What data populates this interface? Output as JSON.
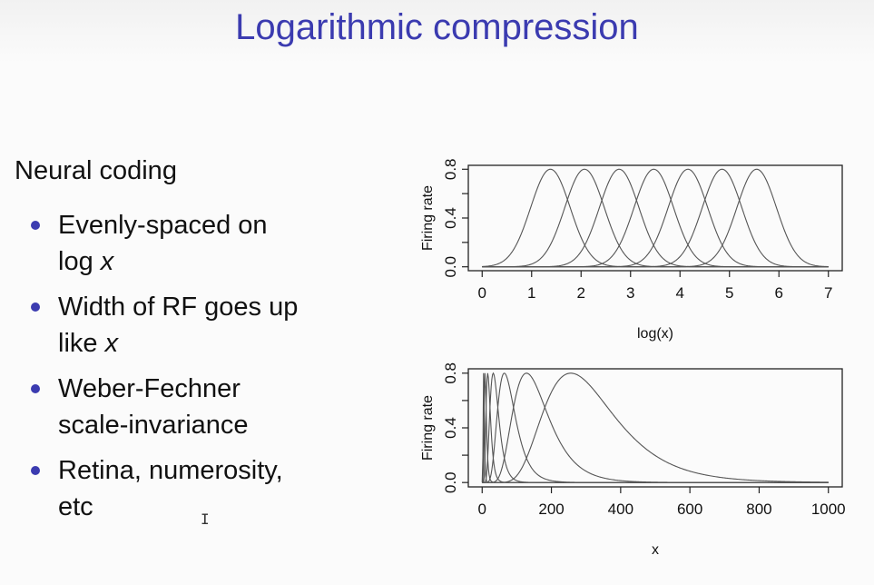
{
  "slide": {
    "title": "Logarithmic compression",
    "heading": "Neural coding",
    "bullets": [
      {
        "lines": [
          [
            "Evenly-spaced on"
          ],
          [
            "log ",
            {
              "em": "x"
            }
          ]
        ]
      },
      {
        "lines": [
          [
            "Width of RF goes up"
          ],
          [
            "like ",
            {
              "em": "x"
            }
          ]
        ]
      },
      {
        "lines": [
          [
            "Weber-Fechner"
          ],
          [
            "scale-invariance"
          ]
        ]
      },
      {
        "lines": [
          [
            "Retina, numerosity,"
          ],
          [
            "etc"
          ]
        ]
      }
    ],
    "cursor_glyph": "I"
  },
  "chart_data": [
    {
      "type": "line",
      "xlabel": "log(x)",
      "ylabel": "Firing rate",
      "xlim": [
        0,
        7
      ],
      "ylim": [
        0,
        0.8
      ],
      "xticks": [
        0,
        1,
        2,
        3,
        4,
        5,
        6,
        7
      ],
      "yticks": [
        0.0,
        0.4,
        0.8
      ],
      "ytick_labels": [
        "0.0",
        "0.4",
        "0.8"
      ],
      "curve_form": "gaussian in log(x)",
      "peak_value": 0.8,
      "series_centers": [
        1.38,
        2.07,
        2.77,
        3.47,
        4.16,
        4.85,
        5.55
      ],
      "series_sigma": 0.4,
      "line_color": "#555555"
    },
    {
      "type": "line",
      "xlabel": "x",
      "ylabel": "Firing rate",
      "xlim": [
        0,
        1000
      ],
      "ylim": [
        0,
        0.8
      ],
      "xticks": [
        0,
        200,
        400,
        600,
        800,
        1000
      ],
      "yticks": [
        0.0,
        0.4,
        0.8
      ],
      "ytick_labels": [
        "0.0",
        "0.4",
        "0.8"
      ],
      "curve_form": "log-normal in x",
      "peak_value": 0.8,
      "series_peak_x": [
        4,
        8,
        16,
        32,
        64,
        128,
        256
      ],
      "series_sigma_log": 0.4,
      "line_color": "#555555"
    }
  ]
}
